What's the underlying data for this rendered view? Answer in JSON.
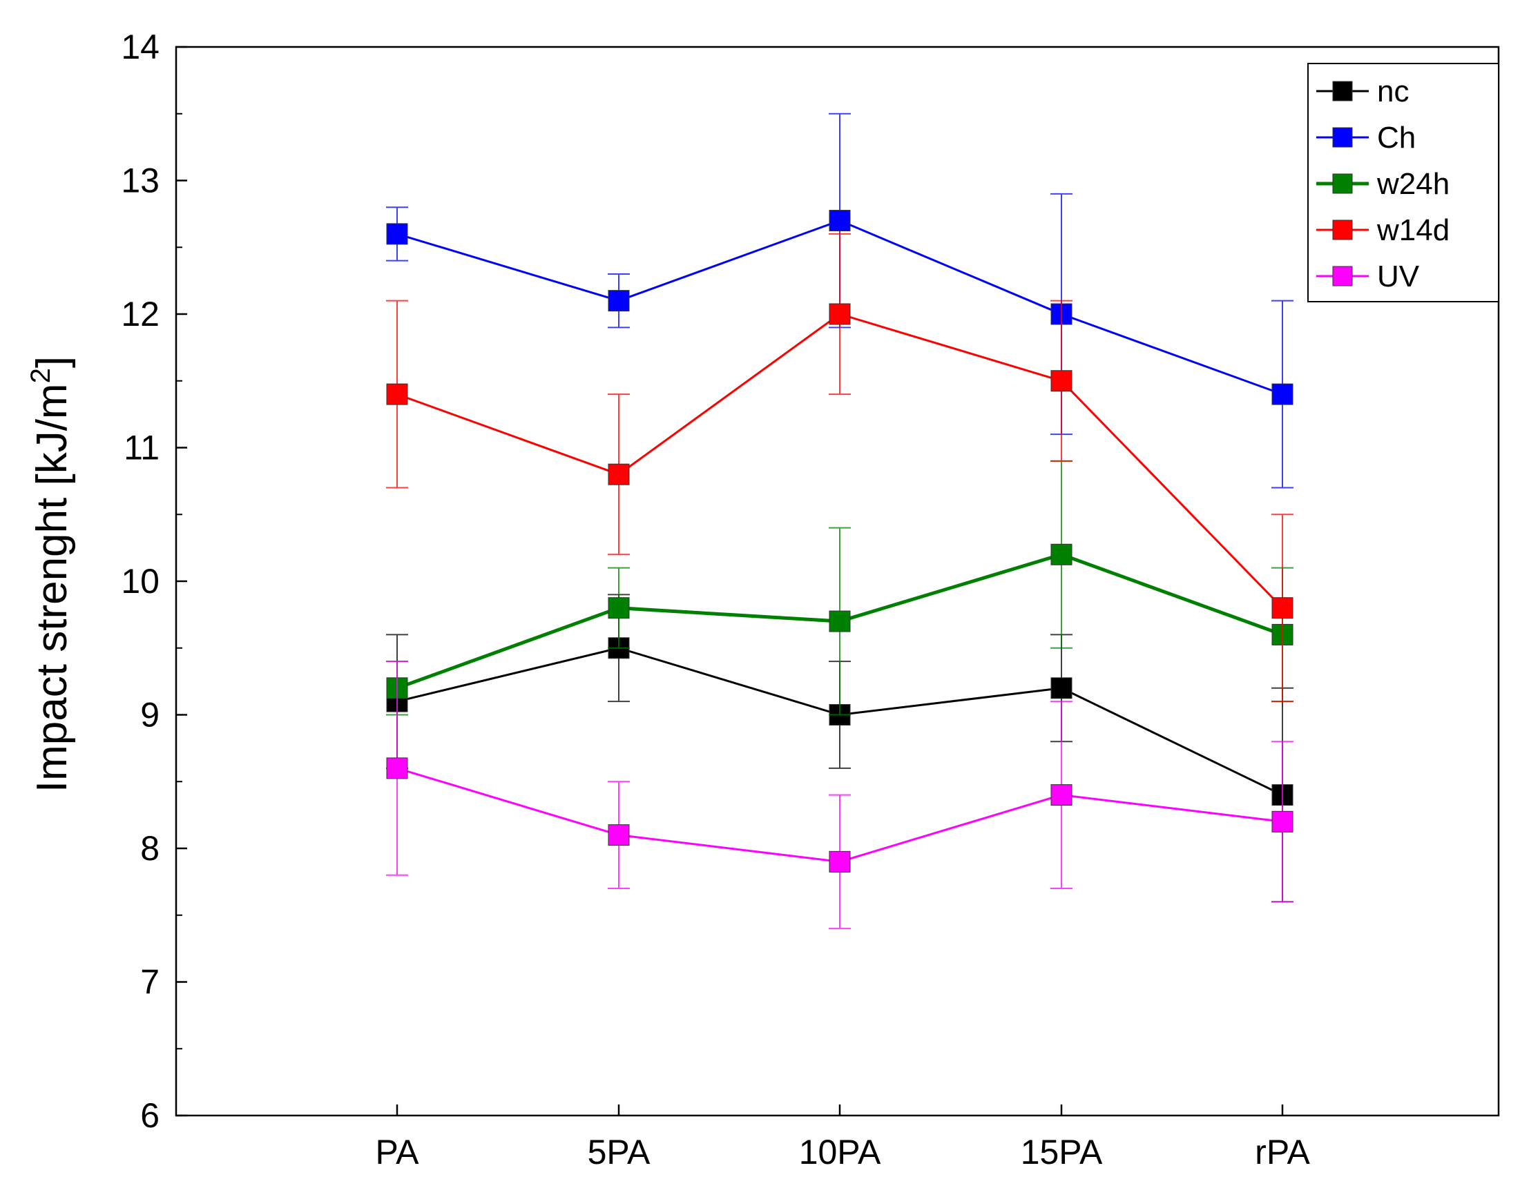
{
  "chart_data": {
    "type": "line",
    "title": "",
    "xlabel": "",
    "ylabel": "Impact strenght [kJ/m",
    "ylabel_superscript": "2",
    "ylabel_suffix": "]",
    "categories": [
      "PA",
      "5PA",
      "10PA",
      "15PA",
      "rPA"
    ],
    "ylim": [
      6,
      14
    ],
    "yticks": [
      6,
      7,
      8,
      9,
      10,
      11,
      12,
      13,
      14
    ],
    "legend_position": "top-right",
    "grid": false,
    "series": [
      {
        "name": "nc",
        "color": "#000000",
        "values": [
          9.1,
          9.5,
          9.0,
          9.2,
          8.4
        ],
        "errors": [
          0.5,
          0.4,
          0.4,
          0.4,
          0.8
        ]
      },
      {
        "name": "Ch",
        "color": "#0000ff",
        "values": [
          12.6,
          12.1,
          12.7,
          12.0,
          11.4
        ],
        "errors": [
          0.2,
          0.2,
          0.8,
          0.9,
          0.7
        ]
      },
      {
        "name": "w24h",
        "color": "#008000",
        "values": [
          9.2,
          9.8,
          9.7,
          10.2,
          9.6
        ],
        "errors": [
          0.2,
          0.3,
          0.7,
          0.7,
          0.5
        ]
      },
      {
        "name": "w14d",
        "color": "#ff0000",
        "values": [
          11.4,
          10.8,
          12.0,
          11.5,
          9.8
        ],
        "errors": [
          0.7,
          0.6,
          0.6,
          0.6,
          0.7
        ]
      },
      {
        "name": "UV",
        "color": "#ff00ff",
        "values": [
          8.6,
          8.1,
          7.9,
          8.4,
          8.2
        ],
        "errors": [
          0.8,
          0.4,
          0.5,
          0.7,
          0.6
        ]
      }
    ]
  }
}
